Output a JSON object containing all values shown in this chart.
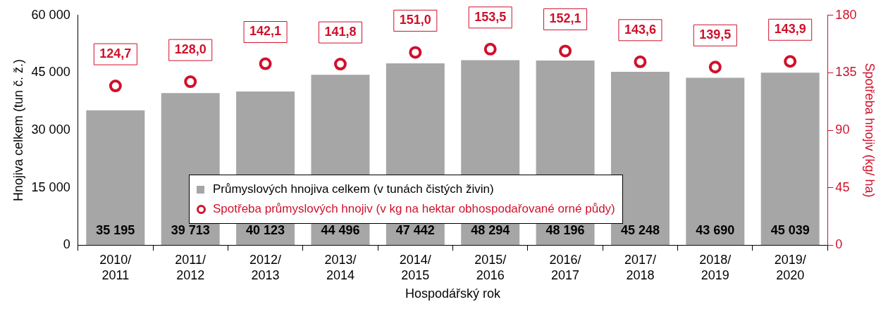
{
  "chart_data": {
    "type": "bar",
    "xlabel": "Hospodářský rok",
    "ylabel": "Hnojiva celkem (tun č. ž.)",
    "y2label": "Spotřeba hnojiv (kg/ ha)",
    "categories": [
      "2010/2011",
      "2011/2012",
      "2012/2013",
      "2013/2014",
      "2014/2015",
      "2015/2016",
      "2016/2017",
      "2017/2018",
      "2018/2019",
      "2019/2020"
    ],
    "series": [
      {
        "name": "Průmyslových hnojiva celkem (v tunách čistých živin)",
        "color": "#a6a6a6",
        "values": [
          35195,
          39713,
          40123,
          44496,
          47442,
          48294,
          48196,
          45248,
          43690,
          45039
        ],
        "value_labels": [
          "35 195",
          "39 713",
          "40 123",
          "44 496",
          "47 442",
          "48 294",
          "48 196",
          "45 248",
          "43 690",
          "45 039"
        ]
      },
      {
        "name": "Spotřeba průmyslových hnojiv (v kg na hektar obhospodařované orné půdy)",
        "type": "scatter",
        "axis": "y2",
        "marker": "circle",
        "color": "#d0112b",
        "values": [
          124.7,
          128.0,
          142.1,
          141.8,
          151.0,
          153.5,
          152.1,
          143.6,
          139.5,
          143.9
        ],
        "value_labels": [
          "124,7",
          "128,0",
          "142,1",
          "141,8",
          "151,0",
          "153,5",
          "152,1",
          "143,6",
          "139,5",
          "143,9"
        ]
      }
    ],
    "ylim": [
      0,
      60000
    ],
    "yticks": [
      {
        "value": 0,
        "label": "0"
      },
      {
        "value": 15000,
        "label": "15 000"
      },
      {
        "value": 30000,
        "label": "30 000"
      },
      {
        "value": 45000,
        "label": "45 000"
      },
      {
        "value": 60000,
        "label": "60 000"
      }
    ],
    "y2lim": [
      0,
      180
    ],
    "y2ticks": [
      0,
      45,
      90,
      135,
      180
    ],
    "grid": false,
    "legend": "center"
  }
}
